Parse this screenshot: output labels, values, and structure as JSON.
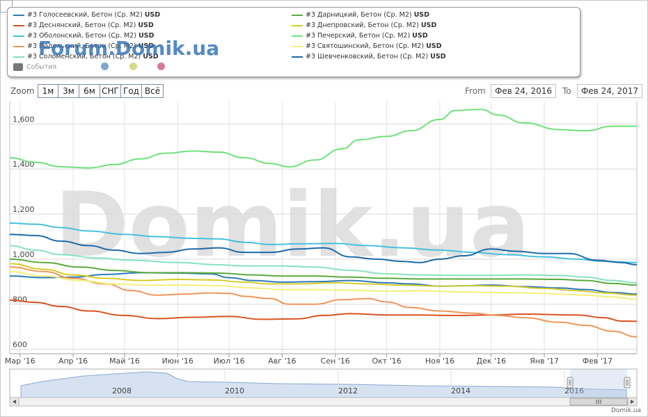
{
  "legend": {
    "items": [
      {
        "label": "#3 Голосеевский, Бетон (Ср. М2)",
        "unit": "USD",
        "color": "#2f7ab8"
      },
      {
        "label": "#3 Деснянский, Бетон (Ср. М2)",
        "unit": "USD",
        "color": "#d9541e"
      },
      {
        "label": "#3 Оболонский, Бетон (Ср. М2)",
        "unit": "USD",
        "color": "#46c0e0"
      },
      {
        "label": "#3 Подольский, Бетон (Ср. М2)",
        "unit": "USD",
        "color": "#f0965a"
      },
      {
        "label": "#3 Соломенский, Бетон (Ср. М2)",
        "unit": "USD",
        "color": "#86e3bf"
      },
      {
        "label": "#3 Дарницкий, Бетон (Ср. М2)",
        "unit": "USD",
        "color": "#5aaa3c"
      },
      {
        "label": "#3 Днепровский, Бетон (Ср. М2)",
        "unit": "USD",
        "color": "#d4cc2a"
      },
      {
        "label": "#3 Печерский, Бетон (Ср. М2)",
        "unit": "USD",
        "color": "#6ee27a"
      },
      {
        "label": "#3 Святошинский, Бетон (Ср. М2)",
        "unit": "USD",
        "color": "#f4f07a"
      },
      {
        "label": "#3 Шевченковский, Бетон (Ср. М2)",
        "unit": "USD",
        "color": "#1e6aaa"
      }
    ],
    "events_label": "События",
    "events_color": "#777777",
    "event_dots": [
      "#7fa7d2",
      "#d6d98a",
      "#d8799a"
    ]
  },
  "watermark_forum": "Forum.Domik.ua",
  "watermark_big": "Domik.ua",
  "toolbar": {
    "zoom_label": "Zoom",
    "buttons": [
      "1м",
      "3м",
      "6м",
      "СНГ",
      "Год",
      "Всё"
    ],
    "from_label": "From",
    "from_value": "Фев 24, 2016",
    "to_label": "To",
    "to_value": "Фев 24, 2017"
  },
  "credit": "Domik.ua",
  "chart_data": {
    "type": "line",
    "x_axis": {
      "labels": [
        "Мар '16",
        "Апр '16",
        "Май '16",
        "Июн '16",
        "Июл '16",
        "Авг '16",
        "Сен '16",
        "Окт '16",
        "Ноя '16",
        "Дек '16",
        "Янв '17",
        "Фев '17"
      ],
      "min": "2016-02-24",
      "max": "2017-02-24"
    },
    "y_axis": {
      "min": 580,
      "max": 1700,
      "ticks": [
        600,
        800,
        1000,
        1200,
        1400,
        1600
      ],
      "tick_labels": [
        "600",
        "800",
        "1,000",
        "1,200",
        "1,400",
        "1,600"
      ]
    },
    "grid": true,
    "series": [
      {
        "name": "#3 Голосеевский, Бетон (Ср. М2)",
        "color": "#2f7ab8",
        "points": [
          [
            "2016-02-24",
            925
          ],
          [
            "2016-03-15",
            918
          ],
          [
            "2016-04-01",
            920
          ],
          [
            "2016-04-20",
            932
          ],
          [
            "2016-05-10",
            940
          ],
          [
            "2016-06-01",
            938
          ],
          [
            "2016-06-20",
            935
          ],
          [
            "2016-07-01",
            918
          ],
          [
            "2016-07-15",
            905
          ],
          [
            "2016-08-01",
            898
          ],
          [
            "2016-08-20",
            900
          ],
          [
            "2016-09-10",
            905
          ],
          [
            "2016-10-01",
            895
          ],
          [
            "2016-10-15",
            890
          ],
          [
            "2016-11-01",
            880
          ],
          [
            "2016-11-15",
            882
          ],
          [
            "2016-12-01",
            885
          ],
          [
            "2016-12-20",
            878
          ],
          [
            "2017-01-10",
            872
          ],
          [
            "2017-01-25",
            865
          ],
          [
            "2017-02-10",
            852
          ],
          [
            "2017-02-24",
            845
          ]
        ]
      },
      {
        "name": "#3 Деснянский, Бетон (Ср. М2)",
        "color": "#d9541e",
        "points": [
          [
            "2016-02-24",
            818
          ],
          [
            "2016-03-10",
            808
          ],
          [
            "2016-03-25",
            790
          ],
          [
            "2016-04-10",
            770
          ],
          [
            "2016-05-01",
            750
          ],
          [
            "2016-05-20",
            736
          ],
          [
            "2016-06-10",
            742
          ],
          [
            "2016-07-01",
            746
          ],
          [
            "2016-07-20",
            733
          ],
          [
            "2016-08-10",
            735
          ],
          [
            "2016-08-25",
            750
          ],
          [
            "2016-09-10",
            758
          ],
          [
            "2016-10-01",
            752
          ],
          [
            "2016-10-20",
            752
          ],
          [
            "2016-11-10",
            750
          ],
          [
            "2016-12-01",
            752
          ],
          [
            "2016-12-20",
            756
          ],
          [
            "2017-01-20",
            752
          ],
          [
            "2017-02-05",
            740
          ],
          [
            "2017-02-15",
            725
          ],
          [
            "2017-02-24",
            724
          ]
        ]
      },
      {
        "name": "#3 Оболонский, Бетон (Ср. М2)",
        "color": "#46c0e0",
        "points": [
          [
            "2016-02-24",
            1160
          ],
          [
            "2016-03-10",
            1155
          ],
          [
            "2016-03-25",
            1140
          ],
          [
            "2016-04-10",
            1125
          ],
          [
            "2016-05-01",
            1110
          ],
          [
            "2016-05-20",
            1100
          ],
          [
            "2016-06-10",
            1092
          ],
          [
            "2016-06-25",
            1090
          ],
          [
            "2016-07-10",
            1075
          ],
          [
            "2016-07-25",
            1065
          ],
          [
            "2016-08-10",
            1068
          ],
          [
            "2016-09-01",
            1070
          ],
          [
            "2016-09-20",
            1060
          ],
          [
            "2016-10-10",
            1050
          ],
          [
            "2016-11-01",
            1040
          ],
          [
            "2016-11-20",
            1030
          ],
          [
            "2016-12-10",
            1020
          ],
          [
            "2017-01-01",
            1010
          ],
          [
            "2017-01-20",
            1000
          ],
          [
            "2017-02-05",
            990
          ],
          [
            "2017-02-24",
            985
          ]
        ]
      },
      {
        "name": "#3 Подольский, Бетон (Ср. М2)",
        "color": "#f0965a",
        "points": [
          [
            "2016-02-24",
            965
          ],
          [
            "2016-03-15",
            945
          ],
          [
            "2016-04-01",
            915
          ],
          [
            "2016-04-20",
            890
          ],
          [
            "2016-05-05",
            860
          ],
          [
            "2016-05-20",
            840
          ],
          [
            "2016-06-05",
            845
          ],
          [
            "2016-06-20",
            850
          ],
          [
            "2016-07-01",
            848
          ],
          [
            "2016-07-10",
            835
          ],
          [
            "2016-07-25",
            825
          ],
          [
            "2016-08-05",
            800
          ],
          [
            "2016-08-20",
            800
          ],
          [
            "2016-09-05",
            820
          ],
          [
            "2016-09-20",
            825
          ],
          [
            "2016-10-01",
            810
          ],
          [
            "2016-10-15",
            785
          ],
          [
            "2016-11-01",
            770
          ],
          [
            "2016-11-20",
            760
          ],
          [
            "2016-12-05",
            750
          ],
          [
            "2016-12-20",
            740
          ],
          [
            "2017-01-10",
            720
          ],
          [
            "2017-01-25",
            706
          ],
          [
            "2017-02-10",
            680
          ],
          [
            "2017-02-24",
            655
          ]
        ]
      },
      {
        "name": "#3 Соломенский, Бетон (Ср. М2)",
        "color": "#86e3bf",
        "points": [
          [
            "2016-02-24",
            1060
          ],
          [
            "2016-03-10",
            1040
          ],
          [
            "2016-03-25",
            1020
          ],
          [
            "2016-04-15",
            1005
          ],
          [
            "2016-05-05",
            995
          ],
          [
            "2016-06-01",
            985
          ],
          [
            "2016-06-25",
            975
          ],
          [
            "2016-07-10",
            970
          ],
          [
            "2016-07-30",
            970
          ],
          [
            "2016-08-20",
            965
          ],
          [
            "2016-09-10",
            950
          ],
          [
            "2016-10-01",
            935
          ],
          [
            "2016-10-20",
            930
          ],
          [
            "2016-11-10",
            928
          ],
          [
            "2016-12-01",
            928
          ],
          [
            "2016-12-20",
            930
          ],
          [
            "2017-01-10",
            928
          ],
          [
            "2017-01-25",
            920
          ],
          [
            "2017-02-10",
            905
          ],
          [
            "2017-02-24",
            895
          ]
        ]
      },
      {
        "name": "#3 Дарницкий, Бетон (Ср. М2)",
        "color": "#5aaa3c",
        "points": [
          [
            "2016-02-24",
            1000
          ],
          [
            "2016-03-15",
            985
          ],
          [
            "2016-04-05",
            965
          ],
          [
            "2016-04-25",
            950
          ],
          [
            "2016-05-15",
            940
          ],
          [
            "2016-06-05",
            940
          ],
          [
            "2016-06-25",
            938
          ],
          [
            "2016-07-15",
            930
          ],
          [
            "2016-08-01",
            925
          ],
          [
            "2016-08-20",
            925
          ],
          [
            "2016-09-10",
            920
          ],
          [
            "2016-10-01",
            915
          ],
          [
            "2016-10-20",
            912
          ],
          [
            "2016-11-10",
            912
          ],
          [
            "2016-12-01",
            912
          ],
          [
            "2016-12-20",
            912
          ],
          [
            "2017-01-10",
            910
          ],
          [
            "2017-01-25",
            905
          ],
          [
            "2017-02-10",
            892
          ],
          [
            "2017-02-24",
            885
          ]
        ]
      },
      {
        "name": "#3 Днепровский, Бетон (Ср. М2)",
        "color": "#d4cc2a",
        "points": [
          [
            "2016-02-24",
            980
          ],
          [
            "2016-03-15",
            955
          ],
          [
            "2016-04-01",
            930
          ],
          [
            "2016-04-20",
            915
          ],
          [
            "2016-05-10",
            905
          ],
          [
            "2016-06-01",
            910
          ],
          [
            "2016-06-20",
            908
          ],
          [
            "2016-07-10",
            898
          ],
          [
            "2016-07-25",
            890
          ],
          [
            "2016-08-10",
            890
          ],
          [
            "2016-09-01",
            895
          ],
          [
            "2016-09-20",
            890
          ],
          [
            "2016-10-10",
            885
          ],
          [
            "2016-11-01",
            880
          ],
          [
            "2016-11-20",
            882
          ],
          [
            "2016-12-10",
            880
          ],
          [
            "2017-01-01",
            870
          ],
          [
            "2017-01-20",
            860
          ],
          [
            "2017-02-05",
            850
          ],
          [
            "2017-02-24",
            840
          ]
        ]
      },
      {
        "name": "#3 Печерский, Бетон (Ср. М2)",
        "color": "#6ee27a",
        "points": [
          [
            "2016-02-24",
            1450
          ],
          [
            "2016-03-10",
            1430
          ],
          [
            "2016-03-25",
            1410
          ],
          [
            "2016-04-10",
            1405
          ],
          [
            "2016-04-25",
            1420
          ],
          [
            "2016-05-10",
            1445
          ],
          [
            "2016-05-25",
            1470
          ],
          [
            "2016-06-10",
            1480
          ],
          [
            "2016-06-25",
            1475
          ],
          [
            "2016-07-10",
            1450
          ],
          [
            "2016-07-25",
            1425
          ],
          [
            "2016-08-05",
            1410
          ],
          [
            "2016-08-20",
            1440
          ],
          [
            "2016-09-05",
            1490
          ],
          [
            "2016-09-15",
            1530
          ],
          [
            "2016-10-01",
            1545
          ],
          [
            "2016-10-15",
            1570
          ],
          [
            "2016-11-01",
            1620
          ],
          [
            "2016-11-10",
            1660
          ],
          [
            "2016-11-25",
            1665
          ],
          [
            "2016-12-05",
            1640
          ],
          [
            "2016-12-20",
            1605
          ],
          [
            "2017-01-10",
            1575
          ],
          [
            "2017-01-25",
            1570
          ],
          [
            "2017-02-10",
            1590
          ],
          [
            "2017-02-24",
            1590
          ]
        ]
      },
      {
        "name": "#3 Святошинский, Бетон (Ср. М2)",
        "color": "#f4f07a",
        "points": [
          [
            "2016-02-24",
            945
          ],
          [
            "2016-03-15",
            925
          ],
          [
            "2016-04-05",
            905
          ],
          [
            "2016-04-25",
            890
          ],
          [
            "2016-05-15",
            885
          ],
          [
            "2016-06-05",
            885
          ],
          [
            "2016-06-25",
            882
          ],
          [
            "2016-07-15",
            872
          ],
          [
            "2016-08-01",
            865
          ],
          [
            "2016-08-20",
            865
          ],
          [
            "2016-09-10",
            862
          ],
          [
            "2016-10-01",
            858
          ],
          [
            "2016-10-20",
            860
          ],
          [
            "2016-11-10",
            855
          ],
          [
            "2016-12-01",
            852
          ],
          [
            "2016-12-20",
            850
          ],
          [
            "2017-01-10",
            845
          ],
          [
            "2017-01-25",
            840
          ],
          [
            "2017-02-10",
            832
          ],
          [
            "2017-02-24",
            822
          ]
        ]
      },
      {
        "name": "#3 Шевченковский, Бетон (Ср. М2)",
        "color": "#1e6aaa",
        "points": [
          [
            "2016-02-24",
            1110
          ],
          [
            "2016-03-10",
            1105
          ],
          [
            "2016-03-25",
            1080
          ],
          [
            "2016-04-10",
            1060
          ],
          [
            "2016-04-25",
            1040
          ],
          [
            "2016-05-10",
            1025
          ],
          [
            "2016-05-25",
            1030
          ],
          [
            "2016-06-10",
            1045
          ],
          [
            "2016-06-25",
            1050
          ],
          [
            "2016-07-10",
            1030
          ],
          [
            "2016-07-25",
            1030
          ],
          [
            "2016-08-10",
            1045
          ],
          [
            "2016-08-25",
            1050
          ],
          [
            "2016-09-10",
            1010
          ],
          [
            "2016-09-25",
            1000
          ],
          [
            "2016-10-10",
            990
          ],
          [
            "2016-10-20",
            985
          ],
          [
            "2016-11-01",
            1000
          ],
          [
            "2016-11-15",
            1015
          ],
          [
            "2016-12-01",
            1045
          ],
          [
            "2016-12-15",
            1035
          ],
          [
            "2017-01-01",
            1025
          ],
          [
            "2017-01-15",
            1025
          ],
          [
            "2017-02-01",
            995
          ],
          [
            "2017-02-15",
            985
          ],
          [
            "2017-02-24",
            975
          ]
        ]
      }
    ],
    "navigator": {
      "year_labels": [
        "2008",
        "2010",
        "2012",
        "2014",
        "2016"
      ]
    }
  }
}
